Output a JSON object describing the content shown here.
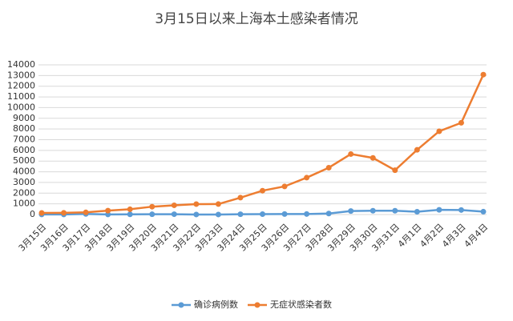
{
  "chart_data": {
    "type": "line",
    "title": "3月15日以来上海本土感染者情况",
    "categories": [
      "3月15日",
      "3月16日",
      "3月17日",
      "3月18日",
      "3月19日",
      "3月20日",
      "3月21日",
      "3月22日",
      "3月23日",
      "3月24日",
      "3月25日",
      "3月26日",
      "3月27日",
      "3月28日",
      "3月29日",
      "3月30日",
      "3月31日",
      "4月1日",
      "4月2日",
      "4月3日",
      "4月4日"
    ],
    "series": [
      {
        "name": "确诊病例数",
        "color": "#5b9bd5",
        "values": [
          5,
          8,
          57,
          8,
          17,
          24,
          31,
          4,
          4,
          29,
          38,
          45,
          50,
          96,
          326,
          355,
          358,
          260,
          438,
          425,
          268
        ]
      },
      {
        "name": "无症状感染者数",
        "color": "#ed7d31",
        "values": [
          150,
          158,
          203,
          366,
          492,
          734,
          865,
          977,
          979,
          1580,
          2231,
          2631,
          3450,
          4381,
          5656,
          5298,
          4144,
          6051,
          7788,
          8581,
          13086
        ]
      }
    ],
    "ylim": [
      0,
      14000
    ],
    "yticks": [
      0,
      1000,
      2000,
      3000,
      4000,
      5000,
      6000,
      7000,
      8000,
      9000,
      10000,
      11000,
      12000,
      13000,
      14000
    ],
    "grid": true
  }
}
